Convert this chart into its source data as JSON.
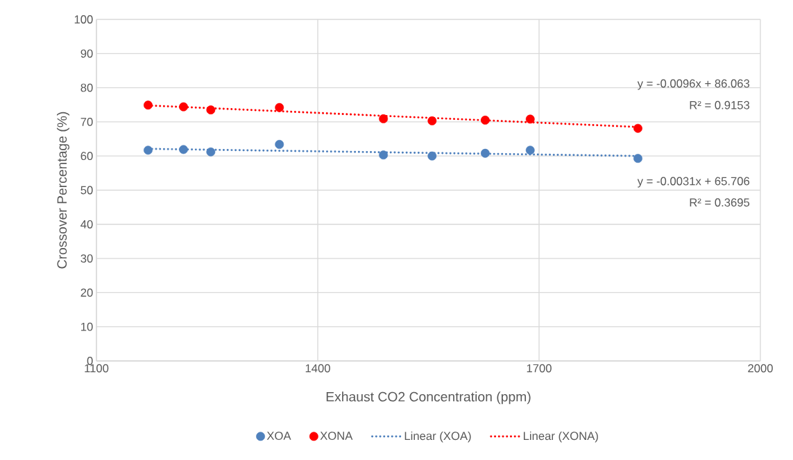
{
  "chart_data": {
    "type": "scatter",
    "xlabel": "Exhaust CO2 Concentration (ppm)",
    "ylabel": "Crossover Percentage (%)",
    "xlim": [
      1100,
      2000
    ],
    "xticks": [
      1100,
      1400,
      1700,
      2000
    ],
    "ylim": [
      0,
      100
    ],
    "yticks": [
      0,
      10,
      20,
      30,
      40,
      50,
      60,
      70,
      80,
      90,
      100
    ],
    "grid": true,
    "legend": "bottom",
    "series": [
      {
        "name": "XOA",
        "marker": "circle",
        "color": "#4f81bd",
        "x": [
          1170,
          1218,
          1255,
          1348,
          1489,
          1555,
          1627,
          1688,
          1834
        ],
        "values": [
          61.7,
          61.9,
          61.2,
          63.4,
          60.3,
          60.0,
          60.8,
          61.7,
          59.3
        ]
      },
      {
        "name": "XONA",
        "marker": "circle",
        "color": "#ff0000",
        "x": [
          1170,
          1218,
          1255,
          1348,
          1489,
          1555,
          1627,
          1688,
          1834
        ],
        "values": [
          74.9,
          74.4,
          73.5,
          74.2,
          70.9,
          70.3,
          70.5,
          70.8,
          68.1
        ]
      },
      {
        "name": "Linear (XOA)",
        "type": "line",
        "marker": "none",
        "line_style": "dotted",
        "color": "#4f81bd",
        "x": [
          1170,
          1834
        ],
        "values": [
          62.1,
          60.0
        ]
      },
      {
        "name": "Linear (XONA)",
        "type": "line",
        "marker": "none",
        "line_style": "dotted",
        "color": "#ff0000",
        "x": [
          1170,
          1834
        ],
        "values": [
          74.8,
          68.5
        ]
      }
    ],
    "annotations": [
      "y = -0.0096x + 86.063",
      "R² = 0.9153",
      "y = -0.0031x + 65.706",
      "R² = 0.3695"
    ]
  }
}
